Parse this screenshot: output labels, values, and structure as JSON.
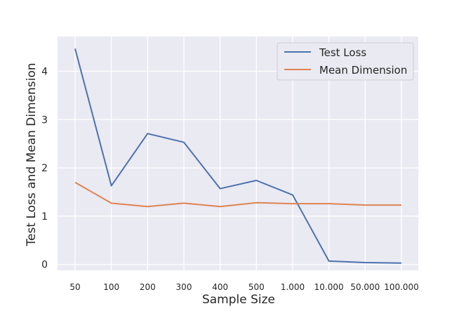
{
  "chart_data": {
    "type": "line",
    "xlabel": "Sample Size",
    "ylabel": "Test Loss and Mean Dimension",
    "categories": [
      "50",
      "100",
      "200",
      "300",
      "400",
      "500",
      "1.000",
      "10.000",
      "50.000",
      "100.000"
    ],
    "y_ticks": [
      0,
      1,
      2,
      3,
      4
    ],
    "ylim": [
      -0.12,
      4.72
    ],
    "grid": true,
    "legend_position": "top-right",
    "series": [
      {
        "name": "Test Loss",
        "color": "#4c72b0",
        "values": [
          4.47,
          1.63,
          2.71,
          2.53,
          1.57,
          1.74,
          1.44,
          0.07,
          0.04,
          0.03
        ]
      },
      {
        "name": "Mean Dimension",
        "color": "#dd8452",
        "values": [
          1.7,
          1.27,
          1.2,
          1.27,
          1.2,
          1.28,
          1.26,
          1.26,
          1.23,
          1.23
        ]
      }
    ],
    "background_color": "#eaeaf2",
    "grid_color": "#ffffff"
  }
}
